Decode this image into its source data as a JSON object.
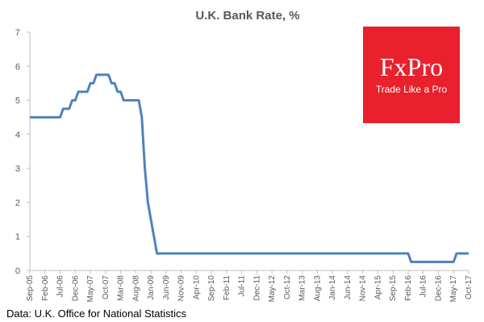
{
  "chart_data": {
    "type": "line",
    "title": "U.K. Bank Rate, %",
    "xlabel": "",
    "ylabel": "",
    "ylim": [
      0,
      7
    ],
    "yticks": [
      0,
      1,
      2,
      3,
      4,
      5,
      6,
      7
    ],
    "grid": false,
    "line_color": "#4f81bd",
    "x_tick_labels": [
      "Sep-05",
      "Feb-06",
      "Jul-06",
      "Dec-06",
      "May-07",
      "Oct-07",
      "Mar-08",
      "Aug-08",
      "Jan-09",
      "Jun-09",
      "Nov-09",
      "Apr-10",
      "Sep-10",
      "Feb-11",
      "Jul-11",
      "Dec-11",
      "May-12",
      "Oct-12",
      "Mar-13",
      "Aug-13",
      "Jan-14",
      "Jun-14",
      "Nov-14",
      "Apr-15",
      "Sep-15",
      "Feb-16",
      "Jul-16",
      "Dec-16",
      "May-17",
      "Oct-17"
    ],
    "x_start": "Sep-05",
    "x_end": "Feb-18",
    "series": [
      {
        "values": [
          4.5,
          4.5,
          4.5,
          4.5,
          4.5,
          4.5,
          4.5,
          4.5,
          4.5,
          4.5,
          4.5,
          4.75,
          4.75,
          4.75,
          5.0,
          5.0,
          5.25,
          5.25,
          5.25,
          5.25,
          5.5,
          5.5,
          5.75,
          5.75,
          5.75,
          5.75,
          5.75,
          5.5,
          5.5,
          5.25,
          5.25,
          5.0,
          5.0,
          5.0,
          5.0,
          5.0,
          5.0,
          4.5,
          3.0,
          2.0,
          1.5,
          1.0,
          0.5,
          0.5,
          0.5,
          0.5,
          0.5,
          0.5,
          0.5,
          0.5,
          0.5,
          0.5,
          0.5,
          0.5,
          0.5,
          0.5,
          0.5,
          0.5,
          0.5,
          0.5,
          0.5,
          0.5,
          0.5,
          0.5,
          0.5,
          0.5,
          0.5,
          0.5,
          0.5,
          0.5,
          0.5,
          0.5,
          0.5,
          0.5,
          0.5,
          0.5,
          0.5,
          0.5,
          0.5,
          0.5,
          0.5,
          0.5,
          0.5,
          0.5,
          0.5,
          0.5,
          0.5,
          0.5,
          0.5,
          0.5,
          0.5,
          0.5,
          0.5,
          0.5,
          0.5,
          0.5,
          0.5,
          0.5,
          0.5,
          0.5,
          0.5,
          0.5,
          0.5,
          0.5,
          0.5,
          0.5,
          0.5,
          0.5,
          0.5,
          0.5,
          0.5,
          0.5,
          0.5,
          0.5,
          0.5,
          0.5,
          0.5,
          0.5,
          0.5,
          0.5,
          0.5,
          0.5,
          0.5,
          0.5,
          0.5,
          0.5,
          0.25,
          0.25,
          0.25,
          0.25,
          0.25,
          0.25,
          0.25,
          0.25,
          0.25,
          0.25,
          0.25,
          0.25,
          0.25,
          0.25,
          0.25,
          0.5,
          0.5,
          0.5,
          0.5,
          0.5
        ]
      }
    ]
  },
  "source_note": "Data: U.K. Office for National Statistics",
  "logo": {
    "name": "FxPro",
    "tagline": "Trade Like a Pro",
    "background": "#e8212c",
    "text_color": "#ffffff"
  },
  "colors": {
    "axis": "#bfbfbf",
    "text": "#595959"
  }
}
